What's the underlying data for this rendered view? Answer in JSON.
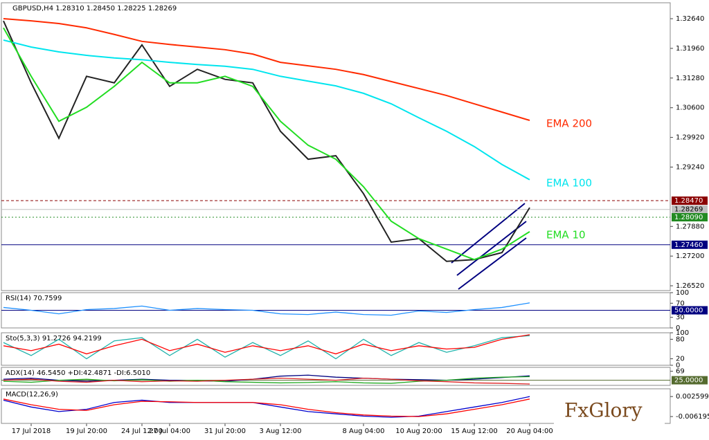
{
  "header": {
    "info": "GBPUSD,H4  1.28310 1.28450 1.28225 1.28269"
  },
  "logo": "FxGlory",
  "chart_data": [
    {
      "type": "line",
      "categories": [
        null,
        "17 Jul 2018",
        null,
        "19 Jul 20:00",
        null,
        "24 Jul 12:00",
        "27 Jul 04:00",
        null,
        "31 Jul 20:00",
        null,
        "3 Aug 12:00",
        null,
        null,
        "8 Aug 04:00",
        null,
        "10 Aug 20:00",
        null,
        "15 Aug 12:00",
        null,
        "20 Aug 04:00"
      ],
      "ylim": [
        1.2641,
        1.33005
      ],
      "yticks": [
        {
          "value": 1.3264,
          "label": "1.32640"
        },
        {
          "value": 1.3196,
          "label": "1.31960"
        },
        {
          "value": 1.3128,
          "label": "1.31280"
        },
        {
          "value": 1.306,
          "label": "1.30600"
        },
        {
          "value": 1.2992,
          "label": "1.29920"
        },
        {
          "value": 1.2924,
          "label": "1.29240"
        },
        {
          "value": 1.2788,
          "label": "1.27880"
        },
        {
          "value": 1.272,
          "label": "1.27200"
        },
        {
          "value": 1.2652,
          "label": "1.26520"
        }
      ],
      "levels": [
        {
          "value": 1.2847,
          "label": "1.28470",
          "color": "#8b0000",
          "dash": "4 3"
        },
        {
          "value": 1.28269,
          "label": "1.28269",
          "color": "#c0c0c0",
          "dash": "none"
        },
        {
          "value": 1.2809,
          "label": "1.28090",
          "color": "#228b22",
          "dash": "2 3"
        },
        {
          "value": 1.2746,
          "label": "1.27460",
          "color": "#000080",
          "dash": "none"
        }
      ],
      "series": [
        {
          "color": "#222222",
          "values": [
            1.3259,
            1.3117,
            1.299,
            1.3132,
            1.3117,
            1.3204,
            1.3109,
            1.3148,
            1.3125,
            1.3117,
            1.3006,
            1.2942,
            1.295,
            1.2863,
            1.2752,
            1.276,
            1.2708,
            1.2712,
            1.2728,
            1.2831
          ]
        },
        {
          "name": "EMA 200",
          "color": "#ff2a00",
          "values": [
            1.3264,
            1.3259,
            1.3253,
            1.3243,
            1.3228,
            1.3212,
            1.3205,
            1.3199,
            1.3193,
            1.3183,
            1.3164,
            1.3156,
            1.3148,
            1.3136,
            1.312,
            1.3104,
            1.3088,
            1.3069,
            1.305,
            1.3031
          ]
        },
        {
          "name": "EMA 100",
          "color": "#00e5ee",
          "values": [
            1.3215,
            1.3199,
            1.3188,
            1.318,
            1.3174,
            1.317,
            1.3164,
            1.3159,
            1.3155,
            1.3148,
            1.3132,
            1.3121,
            1.311,
            1.3093,
            1.3069,
            1.3037,
            1.3006,
            1.2971,
            1.293,
            1.2895
          ]
        },
        {
          "name": "EMA 10",
          "color": "#22dd22",
          "values": [
            1.3243,
            1.3132,
            1.3029,
            1.3061,
            1.3109,
            1.3164,
            1.3117,
            1.3117,
            1.3132,
            1.3109,
            1.3029,
            1.2974,
            1.2942,
            1.2879,
            1.28,
            1.276,
            1.2736,
            1.2712,
            1.2736,
            1.2776
          ]
        }
      ]
    },
    {
      "type": "line",
      "title": "RSI(14) 70.7599",
      "ylim": [
        0,
        100
      ],
      "yticks": [
        100,
        70,
        30,
        0
      ],
      "levels": [
        {
          "value": 50,
          "label": "50.0000",
          "color": "#000080",
          "dash": "none"
        }
      ],
      "series": [
        {
          "color": "#1e90ff",
          "values": [
            58,
            50,
            40,
            52,
            55,
            62,
            50,
            55,
            52,
            50,
            40,
            38,
            45,
            38,
            36,
            48,
            44,
            52,
            58,
            71
          ]
        }
      ]
    },
    {
      "type": "line",
      "title": "Sto(5,3,3) 91.2726 94.2199",
      "ylim": [
        0,
        100
      ],
      "yticks": [
        100,
        80,
        20,
        0
      ],
      "series": [
        {
          "color": "#20b2aa",
          "values": [
            70,
            30,
            80,
            20,
            75,
            85,
            30,
            80,
            25,
            70,
            30,
            75,
            20,
            80,
            30,
            70,
            40,
            60,
            85,
            91
          ]
        },
        {
          "color": "#ff0000",
          "values": [
            60,
            45,
            65,
            35,
            60,
            80,
            45,
            65,
            40,
            60,
            45,
            60,
            35,
            65,
            45,
            60,
            50,
            55,
            80,
            94
          ]
        }
      ]
    },
    {
      "type": "line",
      "title": "ADX(14) 46.5450 +DI:42.4871 -DI:6.5010",
      "ylim": [
        0,
        88
      ],
      "yticks": [
        69
      ],
      "levels": [
        {
          "value": 25,
          "label": "25.0000",
          "color": "#556b2f",
          "dash": "none"
        }
      ],
      "series": [
        {
          "color": "#000080",
          "values": [
            30,
            35,
            25,
            20,
            25,
            30,
            25,
            22,
            20,
            30,
            45,
            50,
            40,
            35,
            30,
            28,
            25,
            30,
            38,
            46.5
          ]
        },
        {
          "color": "#22aa22",
          "values": [
            20,
            15,
            25,
            30,
            22,
            28,
            20,
            25,
            18,
            15,
            12,
            14,
            18,
            12,
            10,
            20,
            25,
            35,
            40,
            42.5
          ]
        },
        {
          "color": "#dd2222",
          "values": [
            25,
            30,
            20,
            15,
            25,
            18,
            22,
            20,
            25,
            30,
            35,
            30,
            25,
            35,
            30,
            22,
            18,
            12,
            10,
            6.5
          ]
        }
      ]
    },
    {
      "type": "line",
      "title": "MACD(12,26,9)",
      "ylim": [
        -0.0092,
        0.006
      ],
      "yticks": [
        0.002599,
        -0.006195
      ],
      "series": [
        {
          "color": "#0000cd",
          "values": [
            0.001,
            -0.002,
            -0.004,
            -0.003,
            0,
            0.001,
            0,
            0,
            0,
            0,
            -0.002,
            -0.004,
            -0.005,
            -0.006,
            -0.0065,
            -0.006,
            -0.004,
            -0.002,
            0,
            0.0026
          ]
        },
        {
          "color": "#ff0000",
          "values": [
            0.0015,
            -0.001,
            -0.003,
            -0.0035,
            -0.001,
            0.0005,
            0.0003,
            0,
            0,
            0,
            -0.001,
            -0.003,
            -0.0045,
            -0.0055,
            -0.006,
            -0.0062,
            -0.005,
            -0.003,
            -0.001,
            0.0015
          ]
        }
      ]
    }
  ]
}
